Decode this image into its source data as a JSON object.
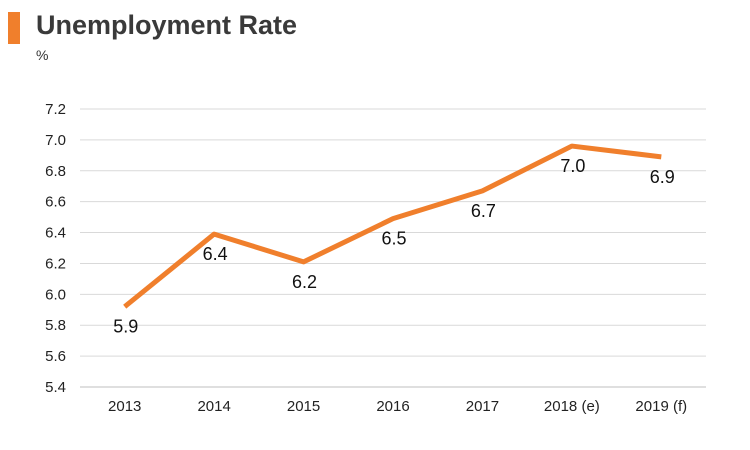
{
  "title": "Unemployment Rate",
  "unit": "%",
  "colors": {
    "accent": "#f07f2c",
    "grid": "#d9d9d9",
    "axis": "#bfbfbf"
  },
  "chart_data": {
    "type": "line",
    "categories": [
      "2013",
      "2014",
      "2015",
      "2016",
      "2017",
      "2018 (e)",
      "2019 (f)"
    ],
    "series": [
      {
        "values": [
          5.92,
          6.39,
          6.21,
          6.49,
          6.67,
          6.96,
          6.89
        ],
        "labels": [
          "5.9",
          "6.4",
          "6.2",
          "6.5",
          "6.7",
          "7.0",
          "6.9"
        ]
      }
    ],
    "yticks": [
      "5.4",
      "5.6",
      "5.8",
      "6.0",
      "6.2",
      "6.4",
      "6.6",
      "6.8",
      "7.0",
      "7.2"
    ],
    "ylim": [
      5.4,
      7.2
    ],
    "grid": true,
    "legend": "none"
  }
}
